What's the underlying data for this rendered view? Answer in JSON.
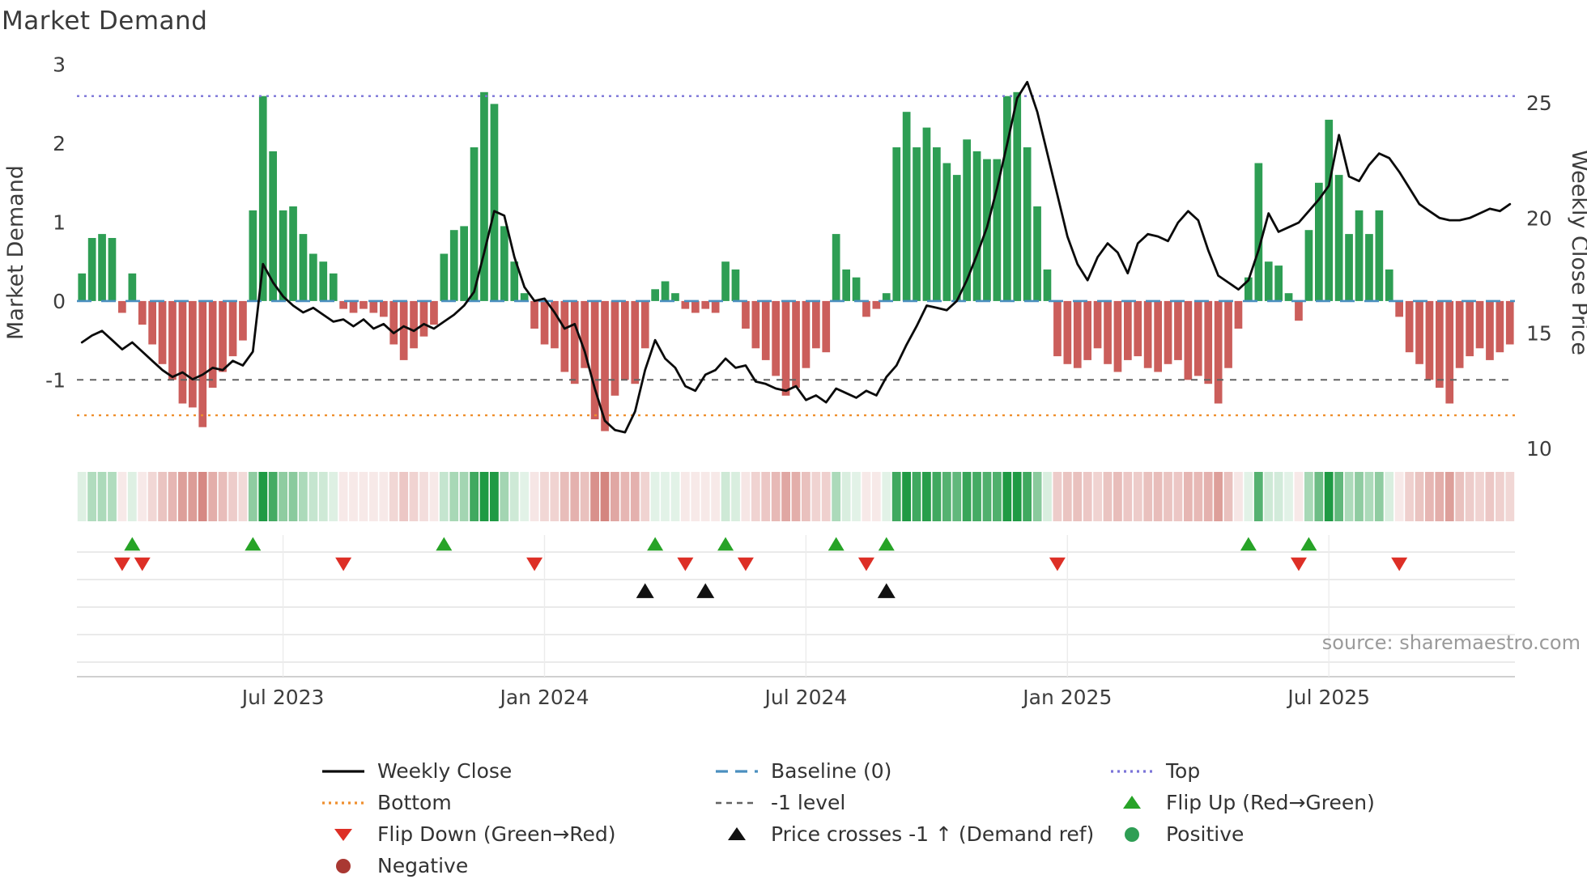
{
  "title": "Market Demand",
  "source": "source: sharemaestro.com",
  "colors": {
    "positive": "#2e9e54",
    "negative": "#cb5e5b",
    "price": "#0b0b0b",
    "top": "#7b74d8",
    "baseline": "#4b8fbf",
    "minus_one": "#636363",
    "bottom": "#ef8f2e",
    "flip_up": "#27a327",
    "flip_down": "#dd2f26",
    "price_cross": "#111111",
    "heat_green": "#1f9a44",
    "heat_red": "#c4564e",
    "grid": "#e4e4e4",
    "spine": "#c9c9c9",
    "tick_text": "#3d3d3d"
  },
  "chart_data": {
    "type": "bar+line",
    "x_unit": "week",
    "title": "Market Demand",
    "axes": {
      "left_label": "Market Demand",
      "right_label": "Weekly Close Price",
      "left_ticks": [
        3,
        2,
        1,
        0,
        -1
      ],
      "right_ticks": [
        25,
        20,
        15,
        10
      ],
      "left_ylim": [
        -1.87,
        3.1
      ],
      "right_ylim": [
        10,
        27
      ],
      "x_ticks": [
        {
          "label": "Jul 2023",
          "week": 20
        },
        {
          "label": "Jan 2024",
          "week": 46
        },
        {
          "label": "Jul 2024",
          "week": 72
        },
        {
          "label": "Jan 2025",
          "week": 98
        },
        {
          "label": "Jul 2025",
          "week": 124
        }
      ]
    },
    "reference_lines": {
      "top": 2.6,
      "baseline": 0,
      "minus_one": -1,
      "bottom": -1.45
    },
    "demand": [
      0.35,
      0.8,
      0.85,
      0.8,
      -0.15,
      0.35,
      -0.3,
      -0.55,
      -0.8,
      -1.0,
      -1.3,
      -1.35,
      -1.6,
      -1.1,
      -0.9,
      -0.7,
      -0.5,
      1.15,
      2.6,
      1.9,
      1.15,
      1.2,
      0.85,
      0.6,
      0.5,
      0.35,
      -0.1,
      -0.15,
      -0.1,
      -0.15,
      -0.2,
      -0.55,
      -0.75,
      -0.6,
      -0.45,
      -0.3,
      0.6,
      0.9,
      0.95,
      1.95,
      2.65,
      2.5,
      0.95,
      0.5,
      0.1,
      -0.35,
      -0.55,
      -0.6,
      -0.9,
      -1.05,
      -0.85,
      -1.5,
      -1.65,
      -1.2,
      -1.0,
      -1.05,
      -0.6,
      0.15,
      0.25,
      0.1,
      -0.1,
      -0.15,
      -0.1,
      -0.15,
      0.5,
      0.4,
      -0.35,
      -0.6,
      -0.75,
      -0.95,
      -1.2,
      -1.1,
      -0.85,
      -0.6,
      -0.65,
      0.85,
      0.4,
      0.3,
      -0.2,
      -0.1,
      0.1,
      1.95,
      2.4,
      1.95,
      2.2,
      1.95,
      1.75,
      1.6,
      2.05,
      1.9,
      1.8,
      1.8,
      2.6,
      2.65,
      1.95,
      1.2,
      0.4,
      -0.7,
      -0.8,
      -0.85,
      -0.75,
      -0.6,
      -0.8,
      -0.9,
      -0.75,
      -0.7,
      -0.85,
      -0.9,
      -0.8,
      -0.75,
      -1.0,
      -0.95,
      -1.05,
      -1.3,
      -0.85,
      -0.35,
      0.3,
      1.75,
      0.5,
      0.45,
      0.1,
      -0.25,
      0.9,
      1.5,
      2.3,
      1.6,
      0.85,
      1.15,
      0.85,
      1.15,
      0.4,
      -0.2,
      -0.65,
      -0.8,
      -1.0,
      -1.1,
      -1.3,
      -0.85,
      -0.7,
      -0.6,
      -0.75,
      -0.65,
      -0.55
    ],
    "price": [
      14.6,
      14.9,
      15.1,
      14.7,
      14.3,
      14.6,
      14.2,
      13.8,
      13.4,
      13.1,
      13.3,
      13.0,
      13.2,
      13.5,
      13.4,
      13.8,
      13.6,
      14.2,
      18.0,
      17.2,
      16.6,
      16.2,
      15.9,
      16.1,
      15.8,
      15.5,
      15.6,
      15.3,
      15.6,
      15.2,
      15.4,
      15.0,
      15.3,
      15.1,
      15.4,
      15.2,
      15.5,
      15.8,
      16.2,
      16.8,
      18.5,
      20.3,
      20.1,
      18.3,
      17.0,
      16.4,
      16.5,
      15.9,
      15.2,
      15.4,
      14.2,
      12.6,
      11.2,
      10.8,
      10.7,
      11.6,
      13.4,
      14.7,
      13.9,
      13.5,
      12.7,
      12.5,
      13.2,
      13.4,
      13.9,
      13.5,
      13.6,
      12.9,
      12.8,
      12.6,
      12.5,
      12.7,
      12.1,
      12.3,
      12.0,
      12.6,
      12.4,
      12.2,
      12.5,
      12.3,
      13.1,
      13.6,
      14.5,
      15.3,
      16.2,
      16.1,
      16.0,
      16.4,
      17.3,
      18.4,
      19.6,
      21.3,
      23.2,
      25.2,
      25.9,
      24.6,
      22.8,
      21.0,
      19.2,
      18.0,
      17.3,
      18.3,
      18.9,
      18.5,
      17.6,
      18.9,
      19.3,
      19.2,
      19.0,
      19.8,
      20.3,
      19.9,
      18.6,
      17.5,
      17.2,
      16.9,
      17.3,
      18.6,
      20.2,
      19.4,
      19.6,
      19.8,
      20.3,
      20.8,
      21.4,
      23.6,
      21.8,
      21.6,
      22.3,
      22.8,
      22.6,
      22.0,
      21.3,
      20.6,
      20.3,
      20.0,
      19.9,
      19.9,
      20.0,
      20.2,
      20.4,
      20.3,
      20.6
    ],
    "markers": {
      "flip_up_weeks": [
        5,
        17,
        36,
        57,
        64,
        75,
        80,
        116,
        122
      ],
      "flip_down_weeks": [
        4,
        6,
        26,
        45,
        60,
        66,
        78,
        97,
        121,
        131
      ],
      "price_cross_weeks": [
        56,
        62,
        80
      ]
    }
  },
  "legend": {
    "columns": [
      [
        {
          "label": "Weekly Close",
          "type": "line",
          "color": "#0b0b0b"
        },
        {
          "label": "Bottom",
          "type": "dotted",
          "color": "#ef8f2e"
        },
        {
          "label": "Flip Down (Green→Red)",
          "type": "tri-down",
          "color": "#dd2f26"
        },
        {
          "label": "Negative",
          "type": "circle",
          "color": "#a93832"
        }
      ],
      [
        {
          "label": "Baseline (0)",
          "type": "dash-long",
          "color": "#4b8fbf"
        },
        {
          "label": "-1 level",
          "type": "dash",
          "color": "#636363"
        },
        {
          "label": "Price crosses -1 ↑ (Demand ref)",
          "type": "tri-up",
          "color": "#111111"
        }
      ],
      [
        {
          "label": "Top",
          "type": "dotted",
          "color": "#7b74d8"
        },
        {
          "label": "Flip Up (Red→Green)",
          "type": "tri-up",
          "color": "#27a327"
        },
        {
          "label": "Positive",
          "type": "circle",
          "color": "#2e9e54"
        }
      ]
    ]
  }
}
